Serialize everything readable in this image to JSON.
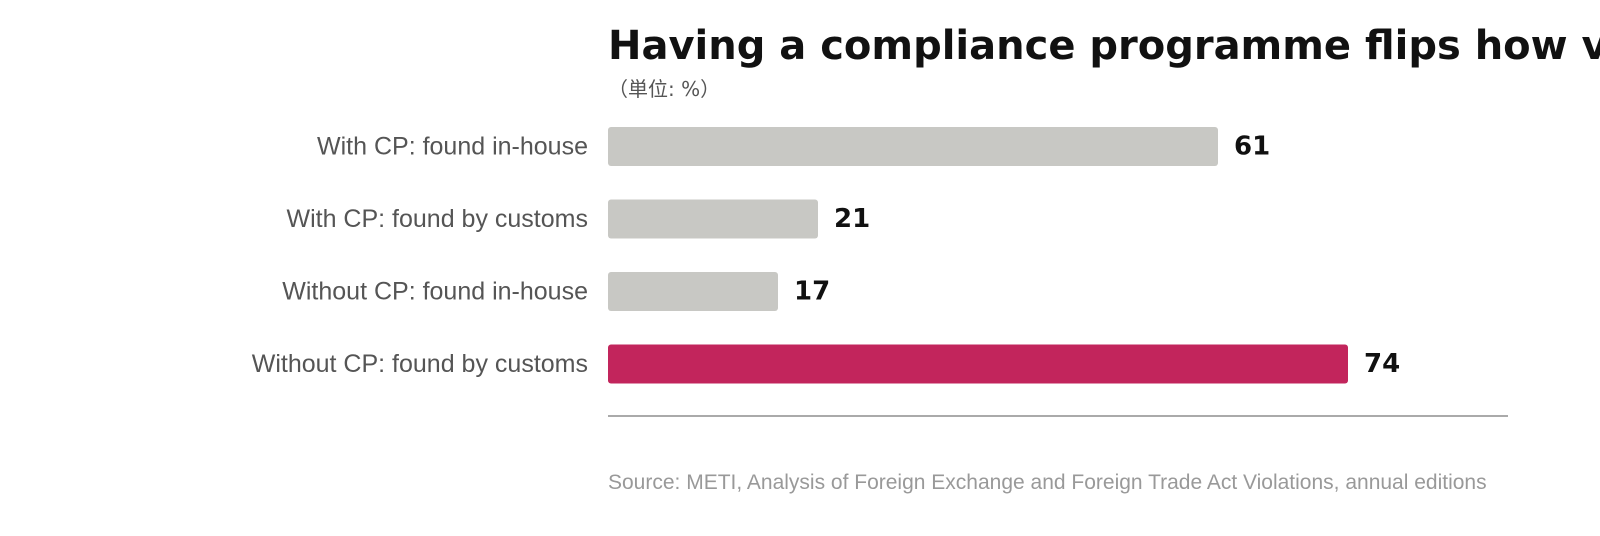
{
  "colors": {
    "bar_default": "#c8c8c4",
    "bar_highlight": "#c2255c",
    "axis_line": "#aaaaaa",
    "category_text": "#555555",
    "value_text": "#111111",
    "title_text": "#111111",
    "source_text": "#999999"
  },
  "chart_data": {
    "type": "bar",
    "orientation": "horizontal",
    "title": "Having a compliance programme flips how vio",
    "subtitle": "（単位: %）",
    "source": "Source: METI, Analysis of Foreign Exchange and Foreign Trade Act Violations, annual editions",
    "xlim": [
      0,
      90
    ],
    "grid": false,
    "categories": [
      "With CP: found in-house",
      "With CP: found by customs",
      "Without CP: found in-house",
      "Without CP: found by customs"
    ],
    "values": [
      61,
      21,
      17,
      74
    ],
    "highlight": [
      false,
      false,
      false,
      true
    ]
  }
}
